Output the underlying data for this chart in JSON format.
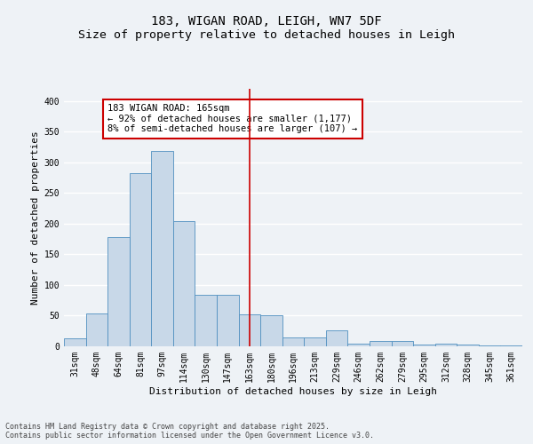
{
  "title_line1": "183, WIGAN ROAD, LEIGH, WN7 5DF",
  "title_line2": "Size of property relative to detached houses in Leigh",
  "xlabel": "Distribution of detached houses by size in Leigh",
  "ylabel": "Number of detached properties",
  "categories": [
    "31sqm",
    "48sqm",
    "64sqm",
    "81sqm",
    "97sqm",
    "114sqm",
    "130sqm",
    "147sqm",
    "163sqm",
    "180sqm",
    "196sqm",
    "213sqm",
    "229sqm",
    "246sqm",
    "262sqm",
    "279sqm",
    "295sqm",
    "312sqm",
    "328sqm",
    "345sqm",
    "361sqm"
  ],
  "values": [
    13,
    53,
    178,
    282,
    318,
    204,
    84,
    84,
    52,
    50,
    15,
    15,
    26,
    5,
    9,
    9,
    3,
    5,
    3,
    2,
    1
  ],
  "bar_color": "#c8d8e8",
  "bar_edge_color": "#5090c0",
  "vline_x_index": 8,
  "vline_color": "#cc0000",
  "annotation_text": "183 WIGAN ROAD: 165sqm\n← 92% of detached houses are smaller (1,177)\n8% of semi-detached houses are larger (107) →",
  "annotation_box_color": "#ffffff",
  "annotation_box_edge_color": "#cc0000",
  "ylim": [
    0,
    420
  ],
  "yticks": [
    0,
    50,
    100,
    150,
    200,
    250,
    300,
    350,
    400
  ],
  "bg_color": "#eef2f6",
  "plot_bg_color": "#eef2f6",
  "grid_color": "#ffffff",
  "footer_text": "Contains HM Land Registry data © Crown copyright and database right 2025.\nContains public sector information licensed under the Open Government Licence v3.0.",
  "title_fontsize": 10,
  "axis_label_fontsize": 8,
  "tick_fontsize": 7,
  "annotation_fontsize": 7.5,
  "footer_fontsize": 6
}
